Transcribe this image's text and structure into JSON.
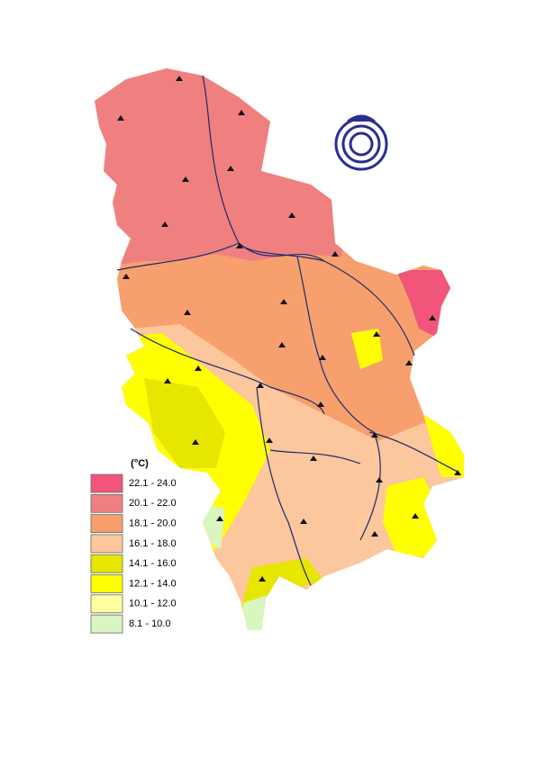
{
  "legend": {
    "title": "(°C)",
    "items": [
      {
        "label": "22.1 - 24.0",
        "color": "#f2557a"
      },
      {
        "label": "20.1 - 22.0",
        "color": "#f08080"
      },
      {
        "label": "18.1 - 20.0",
        "color": "#f7a06e"
      },
      {
        "label": "16.1 - 18.0",
        "color": "#fcc79c"
      },
      {
        "label": "14.1 - 16.0",
        "color": "#e6e600"
      },
      {
        "label": "12.1 - 14.0",
        "color": "#ffff00"
      },
      {
        "label": "10.1 - 12.0",
        "color": "#ffffa0"
      },
      {
        "label": "8.1 - 10.0",
        "color": "#d9f5c0"
      }
    ]
  }
}
